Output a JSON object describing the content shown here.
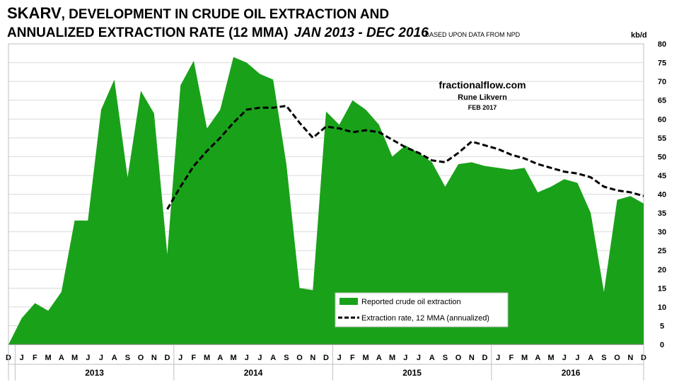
{
  "header": {
    "title_line1_a": "SKARV",
    "title_line1_b": ", DEVELOPMENT IN CRUDE OIL EXTRACTION AND",
    "title_line2_a": "ANNUALIZED EXTRACTION RATE (12 MMA)",
    "title_line2_b": "JAN 2013 - DEC 2016",
    "source": "BASED UPON DATA FROM NPD",
    "unit": "kb/d"
  },
  "credits": {
    "site": "fractionalflow.com",
    "author": "Rune Likvern",
    "date": "FEB 2017"
  },
  "colors": {
    "area": "#1aa11a",
    "line": "#000000",
    "grid": "#d9d9d9"
  },
  "chart_data": {
    "type": "area",
    "title": "SKARV, DEVELOPMENT IN CRUDE OIL EXTRACTION AND ANNUALIZED EXTRACTION RATE (12 MMA) JAN 2013 - DEC 2016",
    "ylabel": "kb/d",
    "ylim": [
      0,
      80
    ],
    "yticks": [
      0,
      5,
      10,
      15,
      20,
      25,
      30,
      35,
      40,
      45,
      50,
      55,
      60,
      65,
      70,
      75,
      80
    ],
    "x": [
      "D",
      "J",
      "F",
      "M",
      "A",
      "M",
      "J",
      "J",
      "A",
      "S",
      "O",
      "N",
      "D",
      "J",
      "F",
      "M",
      "A",
      "M",
      "J",
      "J",
      "A",
      "S",
      "O",
      "N",
      "D",
      "J",
      "F",
      "M",
      "A",
      "M",
      "J",
      "J",
      "A",
      "S",
      "O",
      "N",
      "D",
      "J",
      "F",
      "M",
      "A",
      "M",
      "J",
      "J",
      "A",
      "S",
      "O",
      "N",
      "D"
    ],
    "years": [
      {
        "label": "2013",
        "start": 1,
        "end": 12
      },
      {
        "label": "2014",
        "start": 13,
        "end": 24
      },
      {
        "label": "2015",
        "start": 25,
        "end": 36
      },
      {
        "label": "2016",
        "start": 37,
        "end": 48
      }
    ],
    "series": [
      {
        "name": "Reported crude oil extraction",
        "kind": "area",
        "values": [
          0,
          7,
          11,
          9,
          14,
          33,
          33,
          62.5,
          70.5,
          44.5,
          67.5,
          61.5,
          24,
          69,
          75.5,
          57.5,
          62.5,
          76.5,
          75,
          72,
          70.5,
          48,
          15,
          14.5,
          62,
          58.5,
          65,
          62.5,
          58.5,
          50,
          53,
          51,
          48.5,
          42,
          48,
          48.5,
          47.5,
          47,
          46.5,
          47,
          40.5,
          42,
          44,
          43,
          35,
          14,
          38.5,
          39.5,
          37.5
        ]
      },
      {
        "name": "Extraction rate, 12 MMA (annualized)",
        "kind": "line",
        "values": [
          null,
          null,
          null,
          null,
          null,
          null,
          null,
          null,
          null,
          null,
          null,
          null,
          36,
          42,
          47.5,
          51.5,
          55,
          59,
          62.5,
          63,
          63,
          63.5,
          59,
          55,
          58,
          57.5,
          56.5,
          57,
          56.5,
          54.5,
          52.5,
          51,
          49,
          48.5,
          51,
          54,
          53,
          52,
          50.5,
          49.5,
          48,
          47,
          46,
          45.5,
          44.5,
          42,
          41,
          40.5,
          39.5
        ]
      }
    ],
    "legend": [
      "Reported crude oil extraction",
      "Extraction rate, 12 MMA (annualized)"
    ]
  }
}
